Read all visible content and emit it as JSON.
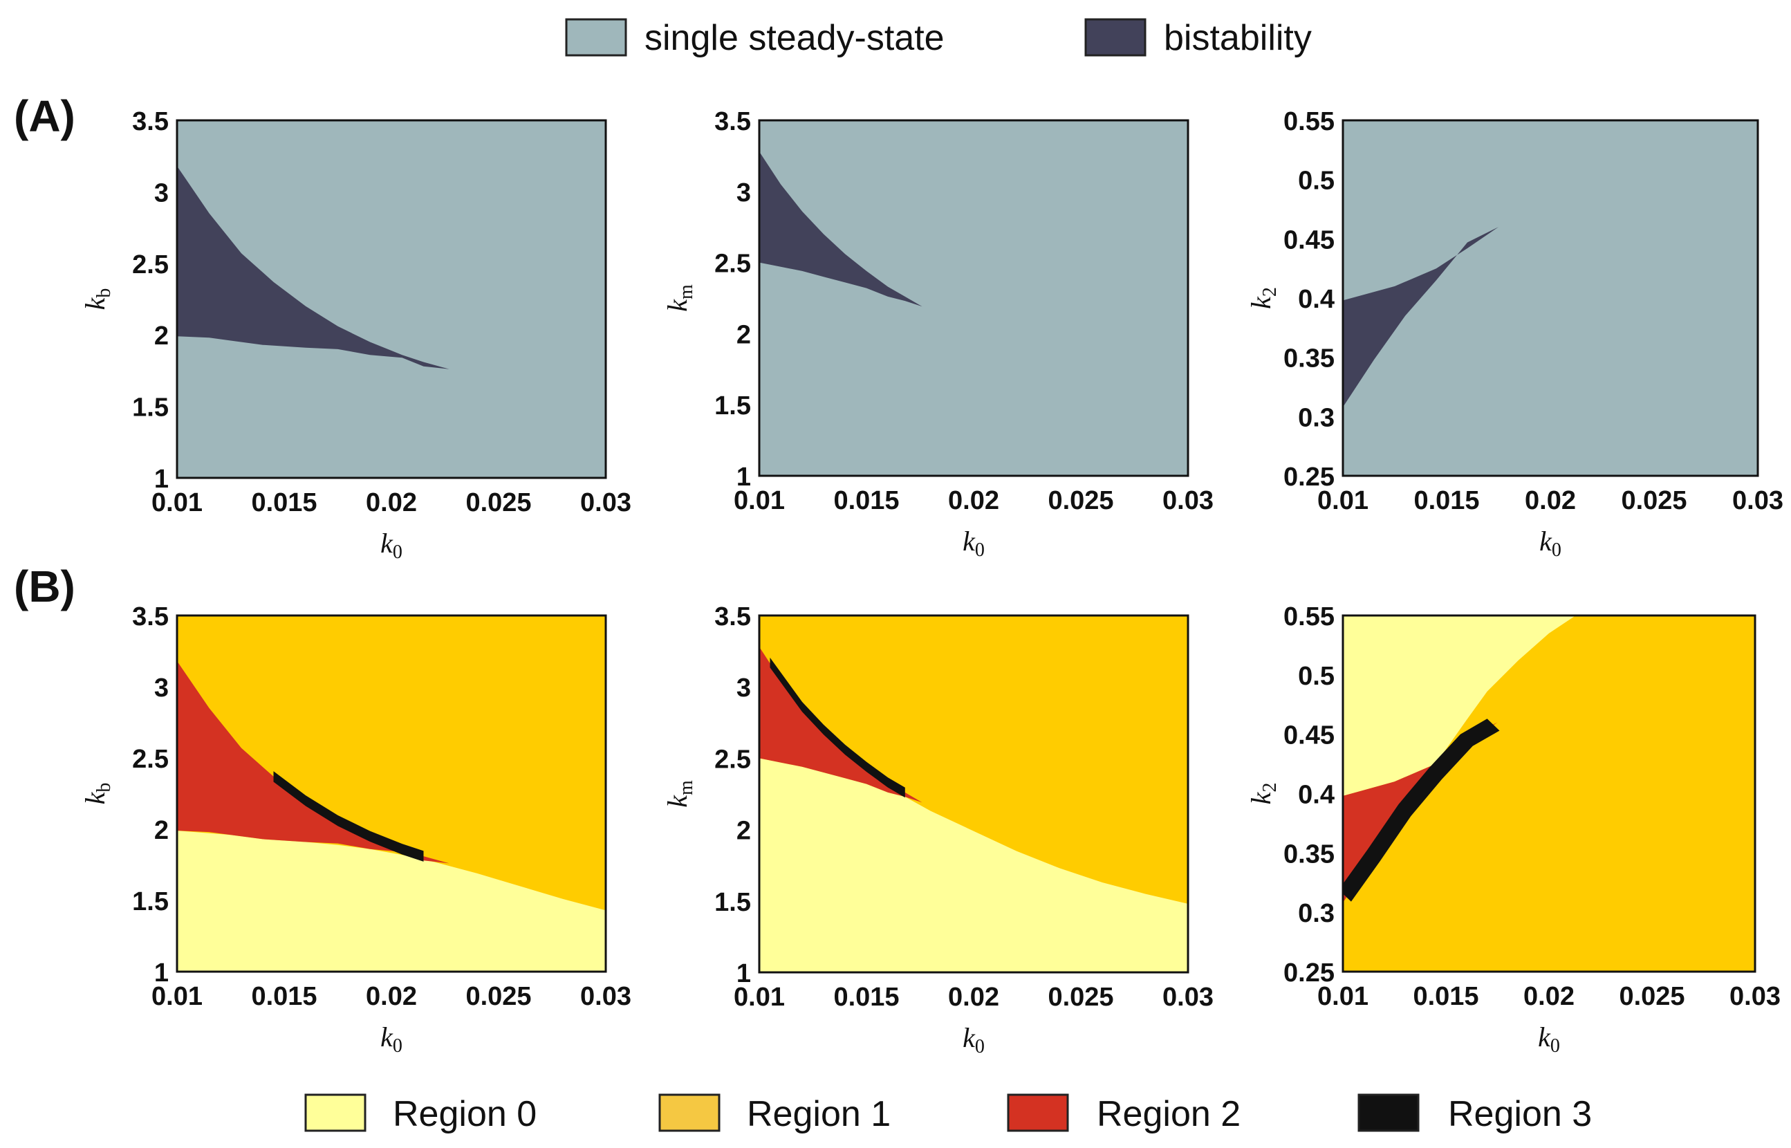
{
  "panel_labels": {
    "a": "(A)",
    "b": "(B)"
  },
  "legend_top": [
    {
      "label": "single steady-state",
      "color": "#9fb7bb"
    },
    {
      "label": "bistability",
      "color": "#42425a"
    }
  ],
  "legend_bottom": [
    {
      "label": "Region 0",
      "color": "#ffff99"
    },
    {
      "label": "Region 1",
      "color": "#f5c842"
    },
    {
      "label": "Region 2",
      "color": "#d43222"
    },
    {
      "label": "Region 3",
      "color": "#111111"
    }
  ],
  "chart_data": [
    {
      "id": "A1",
      "type": "heatmap",
      "panel": "A",
      "xlabel": {
        "base": "k",
        "sub": "0"
      },
      "ylabel": {
        "base": "k",
        "sub": "b"
      },
      "xlim": [
        0.01,
        0.03
      ],
      "ylim": [
        1,
        3.5
      ],
      "xticks": [
        "0.01",
        "0.015",
        "0.02",
        "0.025",
        "0.03"
      ],
      "yticks": [
        "1",
        "1.5",
        "2",
        "2.5",
        "3",
        "3.5"
      ],
      "background": "single steady-state",
      "regions": [
        {
          "name": "bistability",
          "color": "#42425a",
          "points": [
            [
              0.01,
              3.18
            ],
            [
              0.0115,
              2.85
            ],
            [
              0.013,
              2.57
            ],
            [
              0.0145,
              2.37
            ],
            [
              0.016,
              2.2
            ],
            [
              0.0175,
              2.06
            ],
            [
              0.019,
              1.95
            ],
            [
              0.0205,
              1.86
            ],
            [
              0.0215,
              1.81
            ],
            [
              0.0227,
              1.76
            ],
            [
              0.0215,
              1.78
            ],
            [
              0.0205,
              1.84
            ],
            [
              0.019,
              1.86
            ],
            [
              0.0175,
              1.9
            ],
            [
              0.016,
              1.91
            ],
            [
              0.014,
              1.93
            ],
            [
              0.0125,
              1.96
            ],
            [
              0.0115,
              1.98
            ],
            [
              0.01,
              1.99
            ]
          ]
        }
      ]
    },
    {
      "id": "A2",
      "type": "heatmap",
      "panel": "A",
      "xlabel": {
        "base": "k",
        "sub": "0"
      },
      "ylabel": {
        "base": "k",
        "sub": "m"
      },
      "xlim": [
        0.01,
        0.03
      ],
      "ylim": [
        1,
        3.5
      ],
      "xticks": [
        "0.01",
        "0.015",
        "0.02",
        "0.025",
        "0.03"
      ],
      "yticks": [
        "1",
        "1.5",
        "2",
        "2.5",
        "3",
        "3.5"
      ],
      "background": "single steady-state",
      "regions": [
        {
          "name": "bistability",
          "color": "#42425a",
          "points": [
            [
              0.01,
              3.28
            ],
            [
              0.011,
              3.05
            ],
            [
              0.012,
              2.86
            ],
            [
              0.013,
              2.7
            ],
            [
              0.014,
              2.56
            ],
            [
              0.015,
              2.44
            ],
            [
              0.016,
              2.33
            ],
            [
              0.0168,
              2.26
            ],
            [
              0.0176,
              2.19
            ],
            [
              0.0168,
              2.23
            ],
            [
              0.016,
              2.26
            ],
            [
              0.015,
              2.32
            ],
            [
              0.014,
              2.36
            ],
            [
              0.013,
              2.4
            ],
            [
              0.012,
              2.44
            ],
            [
              0.011,
              2.47
            ],
            [
              0.01,
              2.5
            ]
          ]
        }
      ]
    },
    {
      "id": "A3",
      "type": "heatmap",
      "panel": "A",
      "xlabel": {
        "base": "k",
        "sub": "0"
      },
      "ylabel": {
        "base": "k",
        "sub": "2"
      },
      "xlim": [
        0.01,
        0.03
      ],
      "ylim": [
        0.25,
        0.55
      ],
      "xticks": [
        "0.01",
        "0.015",
        "0.02",
        "0.025",
        "0.03"
      ],
      "yticks": [
        "0.25",
        "0.3",
        "0.35",
        "0.4",
        "0.45",
        "0.5",
        "0.55"
      ],
      "background": "single steady-state",
      "regions": [
        {
          "name": "bistability",
          "color": "#42425a",
          "points": [
            [
              0.01,
              0.398
            ],
            [
              0.0125,
              0.41
            ],
            [
              0.0145,
              0.425
            ],
            [
              0.016,
              0.442
            ],
            [
              0.0175,
              0.46
            ],
            [
              0.016,
              0.447
            ],
            [
              0.0145,
              0.415
            ],
            [
              0.013,
              0.385
            ],
            [
              0.0115,
              0.348
            ],
            [
              0.01,
              0.308
            ]
          ]
        }
      ]
    },
    {
      "id": "B1",
      "type": "heatmap",
      "panel": "B",
      "xlabel": {
        "base": "k",
        "sub": "0"
      },
      "ylabel": {
        "base": "k",
        "sub": "b"
      },
      "xlim": [
        0.01,
        0.03
      ],
      "ylim": [
        1,
        3.5
      ],
      "xticks": [
        "0.01",
        "0.015",
        "0.02",
        "0.025",
        "0.03"
      ],
      "yticks": [
        "1",
        "1.5",
        "2",
        "2.5",
        "3",
        "3.5"
      ],
      "background": "Region 1",
      "regions": [
        {
          "name": "Region 0",
          "color": "#ffff99",
          "points": [
            [
              0.01,
              1.0
            ],
            [
              0.01,
              1.99
            ],
            [
              0.0125,
              1.96
            ],
            [
              0.014,
              1.93
            ],
            [
              0.016,
              1.91
            ],
            [
              0.0175,
              1.89
            ],
            [
              0.019,
              1.86
            ],
            [
              0.0205,
              1.82
            ],
            [
              0.022,
              1.77
            ],
            [
              0.024,
              1.69
            ],
            [
              0.026,
              1.6
            ],
            [
              0.028,
              1.51
            ],
            [
              0.03,
              1.43
            ],
            [
              0.03,
              1.0
            ]
          ]
        },
        {
          "name": "Region 2",
          "color": "#d43222",
          "points": [
            [
              0.01,
              3.18
            ],
            [
              0.0115,
              2.85
            ],
            [
              0.013,
              2.57
            ],
            [
              0.0145,
              2.37
            ],
            [
              0.016,
              2.2
            ],
            [
              0.0175,
              2.06
            ],
            [
              0.019,
              1.95
            ],
            [
              0.0205,
              1.86
            ],
            [
              0.0215,
              1.81
            ],
            [
              0.0227,
              1.76
            ],
            [
              0.0215,
              1.78
            ],
            [
              0.0205,
              1.84
            ],
            [
              0.019,
              1.86
            ],
            [
              0.0175,
              1.9
            ],
            [
              0.016,
              1.91
            ],
            [
              0.014,
              1.93
            ],
            [
              0.0125,
              1.96
            ],
            [
              0.0115,
              1.98
            ],
            [
              0.01,
              1.99
            ]
          ]
        },
        {
          "name": "Region 3",
          "color": "#111111",
          "line_width": 0.075,
          "ystrip": true,
          "points": [
            [
              0.0145,
              2.37
            ],
            [
              0.016,
              2.2
            ],
            [
              0.0175,
              2.06
            ],
            [
              0.019,
              1.95
            ],
            [
              0.0205,
              1.86
            ],
            [
              0.0215,
              1.81
            ]
          ]
        }
      ]
    },
    {
      "id": "B2",
      "type": "heatmap",
      "panel": "B",
      "xlabel": {
        "base": "k",
        "sub": "0"
      },
      "ylabel": {
        "base": "k",
        "sub": "m"
      },
      "xlim": [
        0.01,
        0.03
      ],
      "ylim": [
        1,
        3.5
      ],
      "xticks": [
        "0.01",
        "0.015",
        "0.02",
        "0.025",
        "0.03"
      ],
      "yticks": [
        "1",
        "1.5",
        "2",
        "2.5",
        "3",
        "3.5"
      ],
      "background": "Region 1",
      "regions": [
        {
          "name": "Region 0",
          "color": "#ffff99",
          "points": [
            [
              0.01,
              1.0
            ],
            [
              0.01,
              2.5
            ],
            [
              0.011,
              2.47
            ],
            [
              0.012,
              2.44
            ],
            [
              0.013,
              2.4
            ],
            [
              0.014,
              2.36
            ],
            [
              0.015,
              2.32
            ],
            [
              0.016,
              2.26
            ],
            [
              0.0168,
              2.23
            ],
            [
              0.018,
              2.13
            ],
            [
              0.02,
              1.99
            ],
            [
              0.022,
              1.85
            ],
            [
              0.024,
              1.73
            ],
            [
              0.026,
              1.63
            ],
            [
              0.028,
              1.55
            ],
            [
              0.03,
              1.48
            ],
            [
              0.03,
              1.0
            ]
          ]
        },
        {
          "name": "Region 2",
          "color": "#d43222",
          "points": [
            [
              0.01,
              3.28
            ],
            [
              0.011,
              3.05
            ],
            [
              0.012,
              2.86
            ],
            [
              0.013,
              2.7
            ],
            [
              0.014,
              2.56
            ],
            [
              0.015,
              2.44
            ],
            [
              0.016,
              2.33
            ],
            [
              0.0168,
              2.26
            ],
            [
              0.0176,
              2.19
            ],
            [
              0.0168,
              2.23
            ],
            [
              0.016,
              2.26
            ],
            [
              0.015,
              2.32
            ],
            [
              0.014,
              2.36
            ],
            [
              0.013,
              2.4
            ],
            [
              0.012,
              2.44
            ],
            [
              0.011,
              2.47
            ],
            [
              0.01,
              2.5
            ]
          ]
        },
        {
          "name": "Region 3",
          "color": "#111111",
          "line_width": 0.07,
          "ystrip": true,
          "points": [
            [
              0.0105,
              3.17
            ],
            [
              0.012,
              2.86
            ],
            [
              0.013,
              2.7
            ],
            [
              0.014,
              2.56
            ],
            [
              0.015,
              2.44
            ],
            [
              0.016,
              2.33
            ],
            [
              0.0168,
              2.26
            ]
          ]
        }
      ]
    },
    {
      "id": "B3",
      "type": "heatmap",
      "panel": "B",
      "xlabel": {
        "base": "k",
        "sub": "0"
      },
      "ylabel": {
        "base": "k",
        "sub": "2"
      },
      "xlim": [
        0.01,
        0.03
      ],
      "ylim": [
        0.25,
        0.55
      ],
      "xticks": [
        "0.01",
        "0.015",
        "0.02",
        "0.025",
        "0.03"
      ],
      "yticks": [
        "0.25",
        "0.3",
        "0.35",
        "0.4",
        "0.45",
        "0.5",
        "0.55"
      ],
      "background": "Region 1",
      "regions": [
        {
          "name": "Region 0",
          "color": "#ffff99",
          "points": [
            [
              0.01,
              0.55
            ],
            [
              0.0213,
              0.55
            ],
            [
              0.02,
              0.535
            ],
            [
              0.0185,
              0.512
            ],
            [
              0.017,
              0.486
            ],
            [
              0.016,
              0.462
            ],
            [
              0.0145,
              0.425
            ],
            [
              0.0125,
              0.41
            ],
            [
              0.01,
              0.398
            ]
          ]
        },
        {
          "name": "Region 2",
          "color": "#d43222",
          "points": [
            [
              0.01,
              0.398
            ],
            [
              0.0125,
              0.41
            ],
            [
              0.0145,
              0.425
            ],
            [
              0.016,
              0.442
            ],
            [
              0.0175,
              0.46
            ],
            [
              0.016,
              0.447
            ],
            [
              0.0145,
              0.415
            ],
            [
              0.013,
              0.385
            ],
            [
              0.0115,
              0.348
            ],
            [
              0.01,
              0.308
            ]
          ]
        },
        {
          "name": "Region 3",
          "color": "#111111",
          "line_width": 0.01,
          "ystrip": false,
          "points": [
            [
              0.0101,
              0.314
            ],
            [
              0.0115,
              0.348
            ],
            [
              0.013,
              0.386
            ],
            [
              0.0145,
              0.417
            ],
            [
              0.016,
              0.445
            ],
            [
              0.0173,
              0.458
            ]
          ]
        }
      ]
    }
  ]
}
